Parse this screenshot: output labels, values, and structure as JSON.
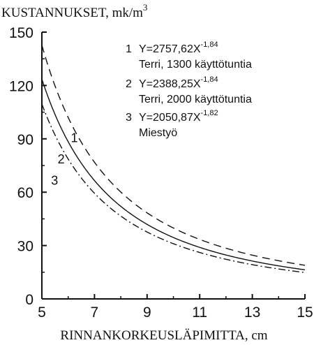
{
  "chart_data": {
    "type": "line",
    "ylabel": "KUSTANNUKSET, mk/m",
    "ylabel_superscript": "3",
    "xlabel": "RINNANKORKEUSLÄPIMITTA, cm",
    "xlim": [
      5,
      15
    ],
    "ylim": [
      0,
      150
    ],
    "xticks": [
      "5",
      "7",
      "9",
      "11",
      "13",
      "15"
    ],
    "yticks": [
      "0",
      "30",
      "60",
      "90",
      "120",
      "150"
    ],
    "grid": false,
    "series": [
      {
        "name": "1",
        "equation": "Y=2757,62X",
        "exponent": "-1,84",
        "description": "Terri, 1300 käyttötuntia",
        "style": "dashed",
        "formula": {
          "a": 2757.62,
          "b": -1.84
        },
        "x": [
          5,
          6,
          7,
          8,
          9,
          10,
          11,
          12,
          13,
          14,
          15
        ],
        "y": [
          142.6,
          101.7,
          76.4,
          59.6,
          47.9,
          39.4,
          33.0,
          28.1,
          24.2,
          21.1,
          18.6
        ]
      },
      {
        "name": "2",
        "equation": "Y=2388,25X",
        "exponent": "-1,84",
        "description": "Terri, 2000 käyttötuntia",
        "style": "solid",
        "formula": {
          "a": 2388.25,
          "b": -1.84
        },
        "x": [
          5,
          6,
          7,
          8,
          9,
          10,
          11,
          12,
          13,
          14,
          15
        ],
        "y": [
          123.5,
          88.1,
          66.1,
          51.6,
          41.5,
          34.1,
          28.6,
          24.3,
          21.0,
          18.3,
          16.1
        ]
      },
      {
        "name": "3",
        "equation": "Y=2050,87X",
        "exponent": "-1,82",
        "description": "Miestyö",
        "style": "dashdot",
        "formula": {
          "a": 2050.87,
          "b": -1.82
        },
        "x": [
          5,
          6,
          7,
          8,
          9,
          10,
          11,
          12,
          13,
          14,
          15
        ],
        "y": [
          110.6,
          79.3,
          59.8,
          46.8,
          37.8,
          31.1,
          26.2,
          22.3,
          19.3,
          16.8,
          14.9
        ]
      }
    ]
  }
}
